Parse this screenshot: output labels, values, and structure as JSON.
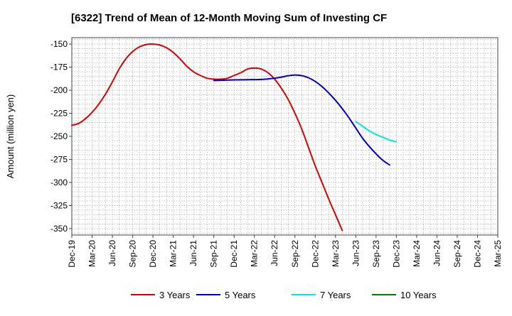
{
  "chart_data": {
    "type": "line",
    "title": "[6322]  Trend of Mean of 12-Month Moving Sum of Investing CF",
    "xlabel": "",
    "ylabel": "Amount (million yen)",
    "ylim": [
      -357,
      -143
    ],
    "yticks": [
      -150,
      -175,
      -200,
      -225,
      -250,
      -275,
      -300,
      -325,
      -350
    ],
    "xticks": [
      "Dec-19",
      "Mar-20",
      "Jun-20",
      "Sep-20",
      "Dec-20",
      "Mar-21",
      "Jun-21",
      "Sep-21",
      "Dec-21",
      "Mar-22",
      "Jun-22",
      "Sep-22",
      "Dec-22",
      "Mar-23",
      "Jun-23",
      "Sep-23",
      "Dec-23",
      "Mar-24",
      "Jun-24",
      "Sep-24",
      "Dec-24",
      "Mar-25"
    ],
    "grid": true,
    "legend_position": "bottom",
    "series": [
      {
        "name": "3 Years",
        "color": "#dd0000",
        "points": [
          [
            0,
            -238
          ],
          [
            1,
            -236
          ],
          [
            2,
            -231
          ],
          [
            3,
            -224
          ],
          [
            4,
            -215
          ],
          [
            5,
            -204
          ],
          [
            6,
            -191
          ],
          [
            7,
            -177
          ],
          [
            8,
            -166
          ],
          [
            9,
            -158
          ],
          [
            10,
            -153
          ],
          [
            11,
            -150.5
          ],
          [
            12,
            -150
          ],
          [
            13,
            -151
          ],
          [
            14,
            -154
          ],
          [
            15,
            -159
          ],
          [
            16,
            -166
          ],
          [
            17,
            -174
          ],
          [
            18,
            -180
          ],
          [
            19,
            -184
          ],
          [
            20,
            -187
          ],
          [
            21,
            -188
          ],
          [
            22,
            -188
          ],
          [
            23,
            -187
          ],
          [
            24,
            -184
          ],
          [
            25,
            -181
          ],
          [
            26,
            -177
          ],
          [
            27,
            -176
          ],
          [
            28,
            -177
          ],
          [
            29,
            -181
          ],
          [
            30,
            -188
          ],
          [
            31,
            -198
          ],
          [
            32,
            -210
          ],
          [
            33,
            -225
          ],
          [
            34,
            -242
          ],
          [
            35,
            -262
          ],
          [
            36,
            -282
          ],
          [
            37,
            -300
          ],
          [
            38,
            -318
          ],
          [
            39,
            -335
          ],
          [
            40,
            -352
          ]
        ]
      },
      {
        "name": "5 Years",
        "color": "#0000cc",
        "points": [
          [
            21,
            -189.5
          ],
          [
            22,
            -189.3
          ],
          [
            23,
            -189
          ],
          [
            24,
            -188.8
          ],
          [
            25,
            -188.7
          ],
          [
            26,
            -188.6
          ],
          [
            27,
            -188.5
          ],
          [
            28,
            -188.3
          ],
          [
            29,
            -187.8
          ],
          [
            30,
            -187
          ],
          [
            31,
            -185.8
          ],
          [
            32,
            -184.3
          ],
          [
            33,
            -183.5
          ],
          [
            34,
            -184.2
          ],
          [
            35,
            -186.5
          ],
          [
            36,
            -190.5
          ],
          [
            37,
            -196
          ],
          [
            38,
            -203
          ],
          [
            39,
            -211
          ],
          [
            40,
            -220
          ],
          [
            41,
            -230
          ],
          [
            42,
            -241
          ],
          [
            43,
            -252
          ],
          [
            44,
            -261
          ],
          [
            45,
            -269
          ],
          [
            46,
            -276
          ],
          [
            47,
            -281
          ]
        ]
      },
      {
        "name": "7 Years",
        "color": "#00e5e5",
        "points": [
          [
            42,
            -234
          ],
          [
            43,
            -239
          ],
          [
            44,
            -244
          ],
          [
            45,
            -248
          ],
          [
            46,
            -251
          ],
          [
            47,
            -254
          ],
          [
            48,
            -256
          ]
        ]
      },
      {
        "name": "10 Years",
        "color": "#008000",
        "points": []
      }
    ],
    "x_point_scale": "month index from Dec-19",
    "legend": [
      "3 Years",
      "5 Years",
      "7 Years",
      "10 Years"
    ]
  }
}
